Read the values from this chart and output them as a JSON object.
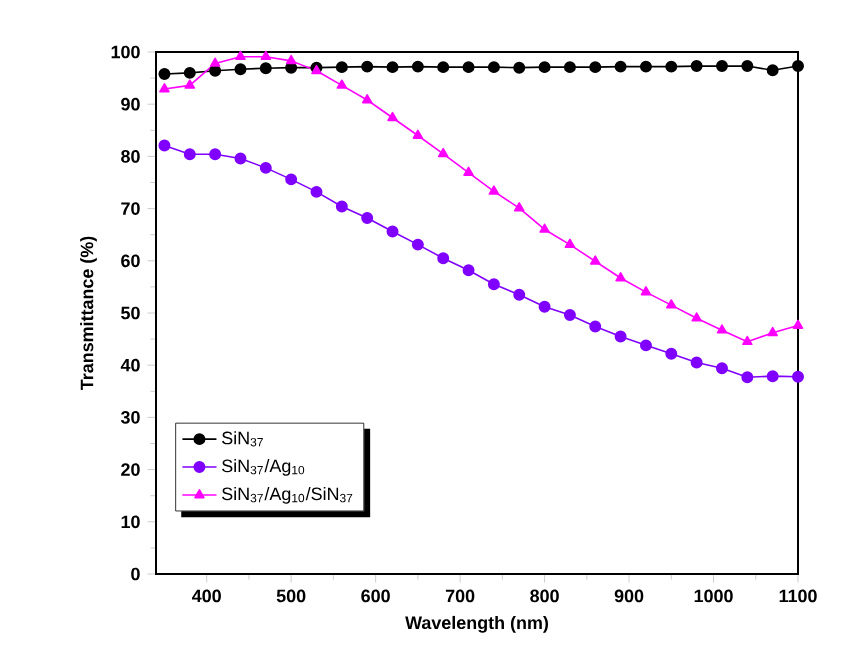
{
  "chart_data": {
    "type": "line",
    "xlabel": "Wavelength (nm)",
    "ylabel": "Transmittance (%)",
    "x": [
      350,
      380,
      410,
      440,
      470,
      500,
      530,
      560,
      590,
      620,
      650,
      680,
      710,
      740,
      770,
      800,
      830,
      860,
      890,
      920,
      950,
      980,
      1010,
      1040,
      1070,
      1100
    ],
    "series": [
      {
        "name": "SiN$_{37}$",
        "color": "#000000",
        "marker": "circle",
        "values": [
          95.8,
          96,
          96.4,
          96.7,
          96.9,
          97,
          97,
          97.1,
          97.2,
          97.1,
          97.2,
          97.1,
          97.1,
          97.1,
          97,
          97.1,
          97.1,
          97.1,
          97.2,
          97.2,
          97.2,
          97.3,
          97.3,
          97.3,
          96.5,
          97.3
        ]
      },
      {
        "name": "SiN$_{37}$/Ag$_{10}$",
        "color": "#8000ff",
        "marker": "circle",
        "values": [
          82.1,
          80.4,
          80.4,
          79.6,
          77.8,
          75.6,
          73.2,
          70.4,
          68.2,
          65.6,
          63.1,
          60.5,
          58.2,
          55.5,
          53.5,
          51.2,
          49.6,
          47.4,
          45.5,
          43.8,
          42.2,
          40.5,
          39.4,
          37.7,
          37.9,
          37.8
        ]
      },
      {
        "name": "SiN$_{37}$/Ag$_{10}$/SiN$_{37}$",
        "color": "#ff00ff",
        "marker": "triangle",
        "values": [
          92.9,
          93.6,
          97.8,
          99.1,
          99.1,
          98.3,
          96.4,
          93.6,
          90.8,
          87.4,
          84,
          80.5,
          76.9,
          73.3,
          70.1,
          66,
          63.1,
          59.9,
          56.7,
          54,
          51.5,
          49,
          46.7,
          44.5,
          46.2,
          47.6
        ]
      }
    ],
    "xlim": [
      340,
      1100
    ],
    "ylim": [
      0,
      100
    ],
    "xticks": [
      400,
      500,
      600,
      700,
      800,
      900,
      1000,
      1100
    ],
    "yticks": [
      0,
      10,
      20,
      30,
      40,
      50,
      60,
      70,
      80,
      90,
      100
    ],
    "legend": "bottom left",
    "grid": false,
    "line_style": "solid"
  }
}
